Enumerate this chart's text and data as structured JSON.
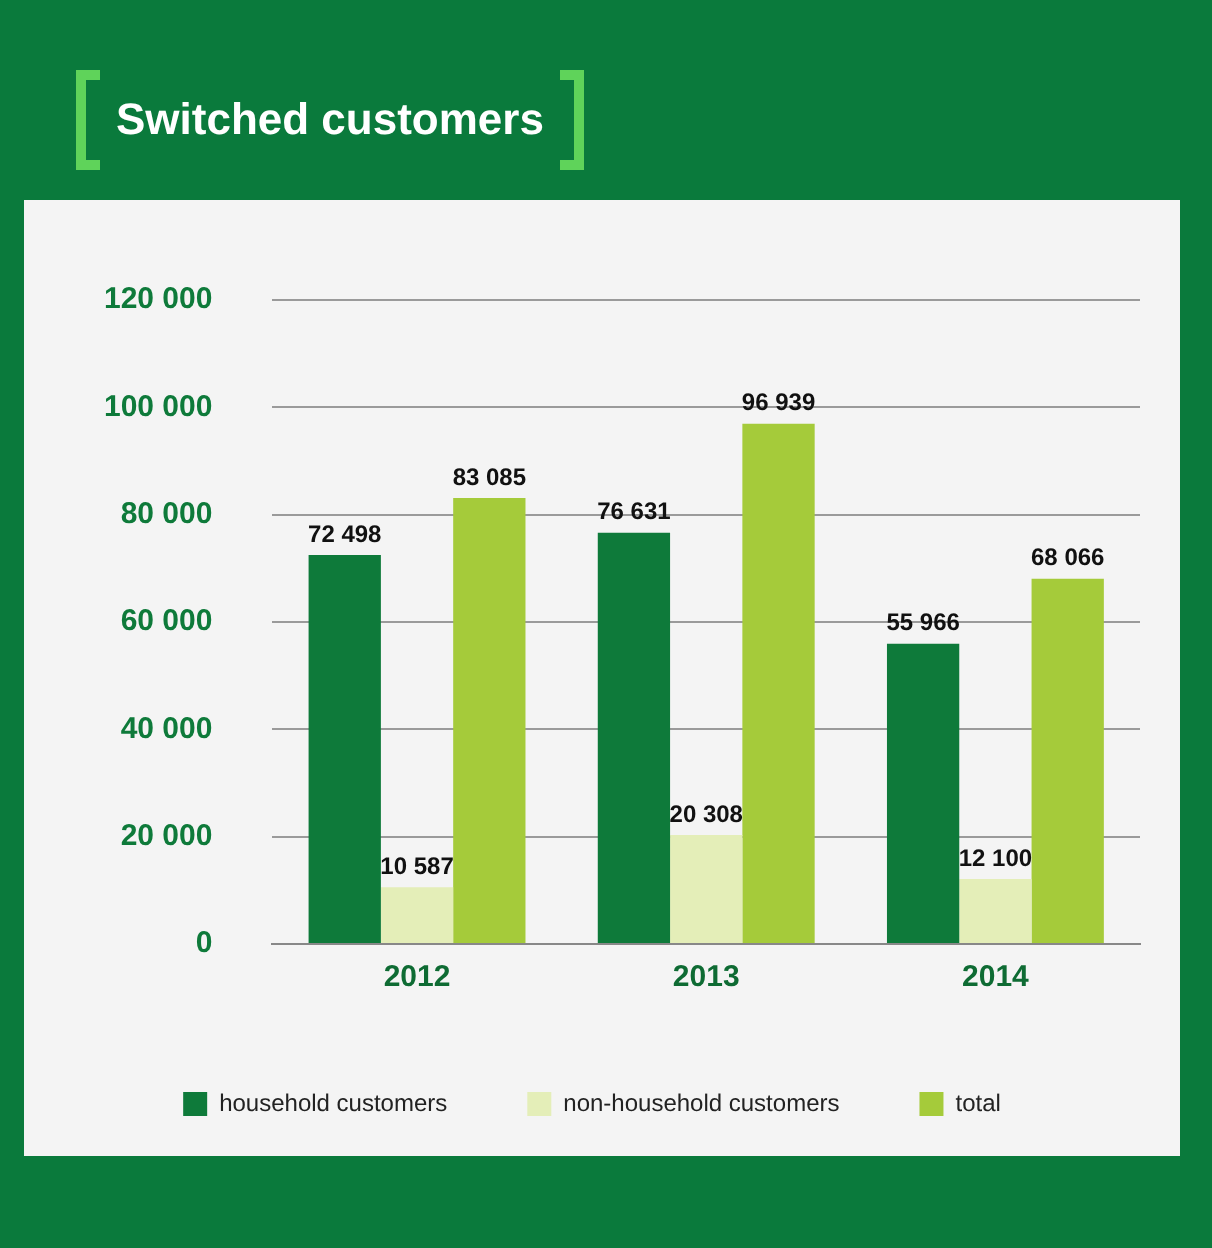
{
  "chart_data": {
    "type": "bar",
    "title": "Switched customers",
    "categories": [
      "2012",
      "2013",
      "2014"
    ],
    "series": [
      {
        "name": "household customers",
        "color": "#0e7a3a",
        "values": [
          72498,
          76631,
          55966
        ],
        "value_labels": [
          "72 498",
          "76 631",
          "55 966"
        ]
      },
      {
        "name": "non-household customers",
        "color": "#e4eeb8",
        "values": [
          10587,
          20308,
          12100
        ],
        "value_labels": [
          "10 587",
          "20 308",
          "12 100"
        ]
      },
      {
        "name": "total",
        "color": "#a5cb3a",
        "values": [
          83085,
          96939,
          68066
        ],
        "value_labels": [
          "83 085",
          "96 939",
          "68 066"
        ]
      }
    ],
    "ylim": [
      0,
      120000
    ],
    "yticks": [
      {
        "value": 0,
        "label": "0"
      },
      {
        "value": 20000,
        "label": "20 000"
      },
      {
        "value": 40000,
        "label": "40 000"
      },
      {
        "value": 60000,
        "label": "60 000"
      },
      {
        "value": 80000,
        "label": "80 000"
      },
      {
        "value": 100000,
        "label": "100 000"
      },
      {
        "value": 120000,
        "label": "120 000"
      }
    ],
    "grid": "y",
    "legend": "bottom"
  }
}
